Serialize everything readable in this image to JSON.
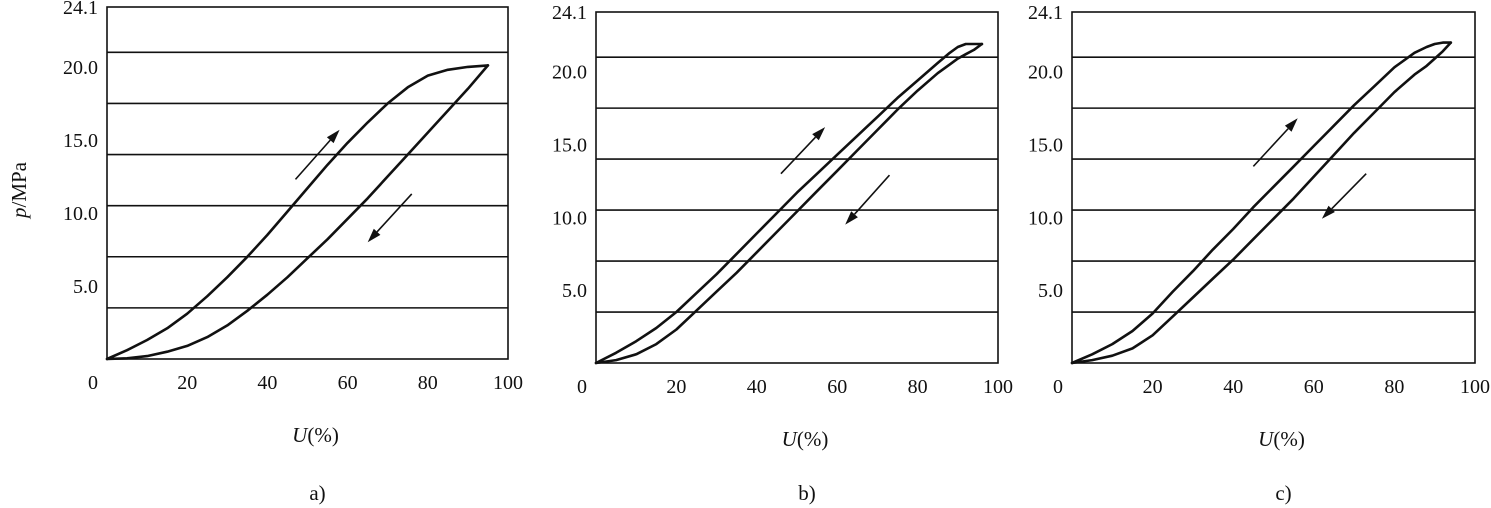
{
  "figure": {
    "ylabel_italic": "p",
    "ylabel_rest": "/MPa"
  },
  "chart_data": [
    {
      "type": "line",
      "panel_label": "a)",
      "xlabel_italic": "U",
      "xlabel_rest": "(%)",
      "xlim": [
        0,
        100
      ],
      "ylim": [
        0,
        24.1
      ],
      "x_ticks": [
        0,
        20,
        40,
        60,
        80,
        100
      ],
      "y_tick_labels": [
        "24.1",
        "20.0",
        "15.0",
        "10.0",
        "5.0"
      ],
      "y_tick_values": [
        24.1,
        20.0,
        15.0,
        10.0,
        5.0
      ],
      "horizontal_lines": [
        3.5,
        7.0,
        10.5,
        14.0,
        17.5,
        21.0
      ],
      "series": [
        {
          "direction": "loading",
          "x": [
            0,
            5,
            10,
            15,
            20,
            25,
            30,
            35,
            40,
            45,
            50,
            55,
            60,
            65,
            70,
            75,
            80,
            85,
            90,
            95
          ],
          "y": [
            0,
            0.6,
            1.3,
            2.1,
            3.1,
            4.3,
            5.6,
            7.0,
            8.5,
            10.1,
            11.7,
            13.3,
            14.8,
            16.2,
            17.5,
            18.6,
            19.4,
            19.8,
            20.0,
            20.1
          ]
        },
        {
          "direction": "unloading",
          "x": [
            95,
            90,
            85,
            80,
            75,
            70,
            65,
            60,
            55,
            50,
            45,
            40,
            35,
            30,
            25,
            20,
            15,
            10,
            5,
            0
          ],
          "y": [
            20.1,
            18.5,
            17.0,
            15.5,
            14.0,
            12.5,
            11.0,
            9.6,
            8.2,
            6.9,
            5.6,
            4.4,
            3.3,
            2.3,
            1.5,
            0.9,
            0.5,
            0.2,
            0.05,
            0
          ]
        }
      ],
      "arrows": [
        {
          "direction": "up",
          "from": [
            47,
            12.3
          ],
          "to": [
            58,
            15.7
          ]
        },
        {
          "direction": "down",
          "from": [
            76,
            11.3
          ],
          "to": [
            65,
            8.0
          ]
        }
      ]
    },
    {
      "type": "line",
      "panel_label": "b)",
      "xlabel_italic": "U",
      "xlabel_rest": "(%)",
      "xlim": [
        0,
        100
      ],
      "ylim": [
        0,
        24.1
      ],
      "x_ticks": [
        0,
        20,
        40,
        60,
        80,
        100
      ],
      "y_tick_labels": [
        "24.1",
        "20.0",
        "15.0",
        "10.0",
        "5.0"
      ],
      "y_tick_values": [
        24.1,
        20.0,
        15.0,
        10.0,
        5.0
      ],
      "horizontal_lines": [
        3.5,
        7.0,
        10.5,
        14.0,
        17.5,
        21.0
      ],
      "series": [
        {
          "direction": "loading",
          "x": [
            0,
            5,
            10,
            15,
            20,
            25,
            30,
            35,
            40,
            45,
            50,
            55,
            60,
            65,
            70,
            75,
            80,
            85,
            88,
            90,
            92,
            94,
            96
          ],
          "y": [
            0,
            0.7,
            1.5,
            2.4,
            3.5,
            4.8,
            6.1,
            7.5,
            8.9,
            10.3,
            11.7,
            13.0,
            14.3,
            15.6,
            16.9,
            18.2,
            19.4,
            20.6,
            21.3,
            21.7,
            21.9,
            21.9,
            21.9
          ]
        },
        {
          "direction": "unloading",
          "x": [
            96,
            94,
            92,
            90,
            88,
            85,
            80,
            75,
            70,
            65,
            60,
            55,
            50,
            45,
            40,
            35,
            30,
            25,
            20,
            15,
            10,
            5,
            0
          ],
          "y": [
            21.9,
            21.5,
            21.2,
            20.9,
            20.5,
            19.9,
            18.7,
            17.4,
            16.0,
            14.6,
            13.2,
            11.8,
            10.4,
            9.0,
            7.6,
            6.2,
            4.9,
            3.6,
            2.3,
            1.3,
            0.6,
            0.2,
            0
          ]
        }
      ],
      "arrows": [
        {
          "direction": "up",
          "from": [
            46,
            13.0
          ],
          "to": [
            57,
            16.2
          ]
        },
        {
          "direction": "down",
          "from": [
            73,
            12.9
          ],
          "to": [
            62,
            9.5
          ]
        }
      ]
    },
    {
      "type": "line",
      "panel_label": "c)",
      "xlabel_italic": "U",
      "xlabel_rest": "(%)",
      "xlim": [
        0,
        100
      ],
      "ylim": [
        0,
        24.1
      ],
      "x_ticks": [
        0,
        20,
        40,
        60,
        80,
        100
      ],
      "y_tick_labels": [
        "24.1",
        "20.0",
        "15.0",
        "10.0",
        "5.0"
      ],
      "y_tick_values": [
        24.1,
        20.0,
        15.0,
        10.0,
        5.0
      ],
      "horizontal_lines": [
        3.5,
        7.0,
        10.5,
        14.0,
        17.5,
        21.0
      ],
      "series": [
        {
          "direction": "loading",
          "x": [
            0,
            5,
            10,
            15,
            20,
            25,
            30,
            35,
            40,
            45,
            50,
            55,
            60,
            65,
            70,
            75,
            80,
            85,
            88,
            90,
            92,
            94
          ],
          "y": [
            0,
            0.6,
            1.3,
            2.2,
            3.4,
            4.9,
            6.3,
            7.8,
            9.2,
            10.7,
            12.1,
            13.5,
            14.9,
            16.3,
            17.7,
            19.0,
            20.3,
            21.3,
            21.7,
            21.9,
            22.0,
            22.0
          ]
        },
        {
          "direction": "unloading",
          "x": [
            94,
            92,
            90,
            88,
            85,
            80,
            75,
            70,
            65,
            60,
            55,
            50,
            45,
            40,
            35,
            30,
            25,
            20,
            15,
            10,
            5,
            0
          ],
          "y": [
            22.0,
            21.4,
            20.9,
            20.4,
            19.8,
            18.6,
            17.2,
            15.8,
            14.3,
            12.8,
            11.3,
            9.9,
            8.5,
            7.1,
            5.8,
            4.5,
            3.2,
            1.9,
            1.0,
            0.5,
            0.2,
            0
          ]
        }
      ],
      "arrows": [
        {
          "direction": "up",
          "from": [
            45,
            13.5
          ],
          "to": [
            56,
            16.8
          ]
        },
        {
          "direction": "down",
          "from": [
            73,
            13.0
          ],
          "to": [
            62,
            9.9
          ]
        }
      ]
    }
  ]
}
